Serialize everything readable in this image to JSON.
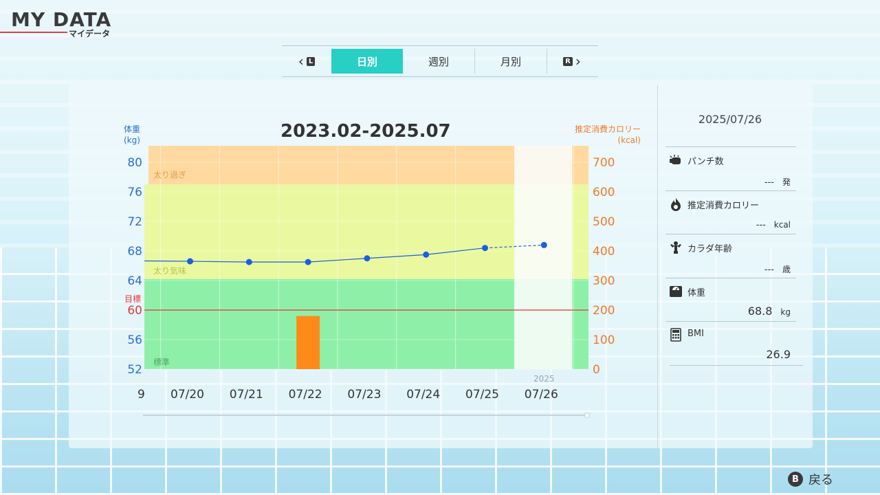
{
  "header": {
    "title": "MY DATA",
    "subtitle": "マイデータ"
  },
  "tabs": {
    "left_badge": "L",
    "right_badge": "R",
    "items": [
      {
        "label": "日別",
        "active": true
      },
      {
        "label": "週別",
        "active": false
      },
      {
        "label": "月別",
        "active": false
      }
    ]
  },
  "chart": {
    "title": "2023.02-2025.07",
    "left_axis_title": [
      "体重",
      "(kg)"
    ],
    "right_axis_title": [
      "推定消費カロリー",
      "(kcal)"
    ],
    "goal_label": "目標",
    "zones": [
      "太り過ぎ",
      "太り気味",
      "標準"
    ],
    "year_label": "2025"
  },
  "chart_data": {
    "type": "line",
    "x": [
      "07/20",
      "07/21",
      "07/22",
      "07/23",
      "07/24",
      "07/25",
      "07/26"
    ],
    "partial_left_tick": "9",
    "series": [
      {
        "values": [
          66.6,
          66.5,
          66.5,
          67.0,
          67.5,
          68.4,
          68.8
        ]
      }
    ],
    "bars": {
      "axis": "right",
      "values": [
        0,
        0,
        180,
        0,
        0,
        0,
        0
      ]
    },
    "ylim_left": [
      52,
      80
    ],
    "left_ticks": [
      "80",
      "76",
      "72",
      "68",
      "64",
      "60",
      "56",
      "52"
    ],
    "ylim_right": [
      0,
      700
    ],
    "right_ticks": [
      "700",
      "600",
      "500",
      "400",
      "300",
      "200",
      "100",
      "0"
    ],
    "goal_value": 60,
    "zone_bounds": {
      "standard_max": 64.2,
      "slightly_over_max": 77
    },
    "selected": "07/26",
    "colors": {
      "line": "#1a5fe0",
      "bar": "#ff8a1a",
      "goal": "#e03a3a",
      "zone_over": "#ffd9a0",
      "zone_slight": "#eaf8a0",
      "zone_standard": "#8ef0a8",
      "left_axis": "#2a6fd6",
      "right_axis": "#f07a28"
    }
  },
  "side": {
    "date": "2025/07/26",
    "stats": [
      {
        "icon": "punch-icon",
        "label": "パンチ数",
        "value": "---",
        "unit": "発"
      },
      {
        "icon": "flame-icon",
        "label": "推定消費カロリー",
        "value": "---",
        "unit": "kcal"
      },
      {
        "icon": "muscle-icon",
        "label": "カラダ年齢",
        "value": "---",
        "unit": "歳"
      },
      {
        "icon": "scale-icon",
        "label": "体重",
        "value": "68.8",
        "unit": "kg"
      },
      {
        "icon": "calculator-icon",
        "label": "BMI",
        "value": "26.9",
        "unit": ""
      }
    ]
  },
  "footer": {
    "back_badge": "B",
    "back_label": "戻る"
  }
}
